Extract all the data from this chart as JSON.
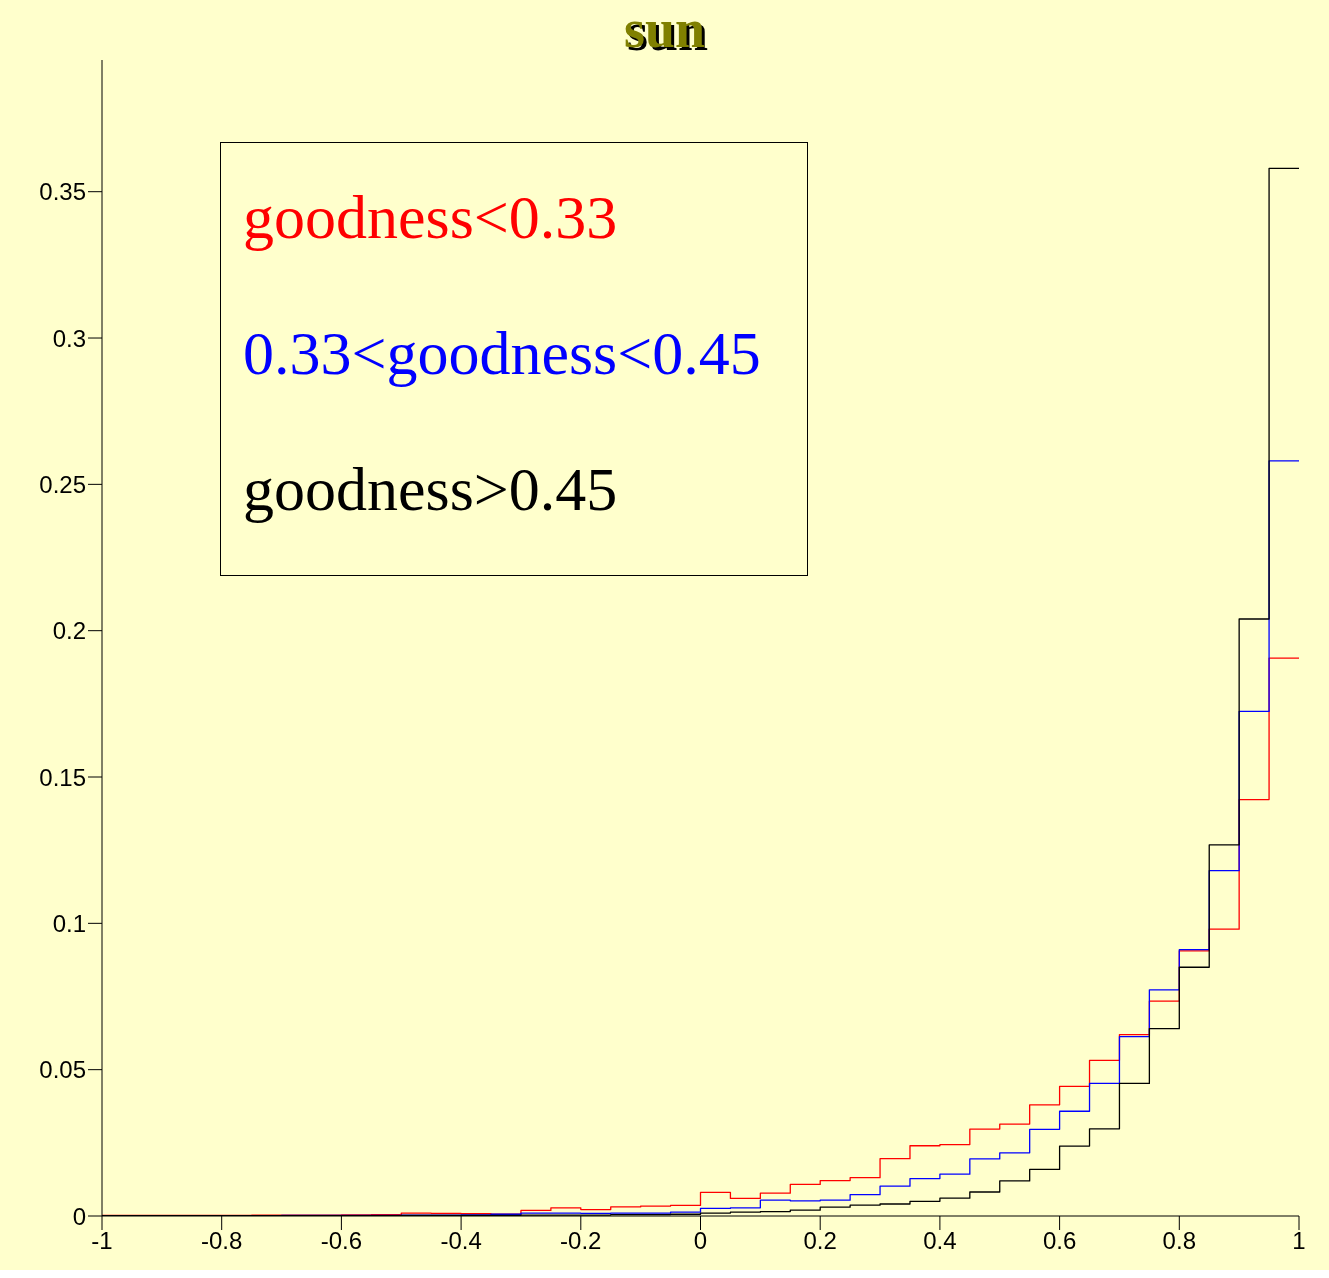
{
  "chart_data": {
    "type": "histogram",
    "title": "sun",
    "bins": [
      -1,
      -0.95,
      -0.9,
      -0.85,
      -0.8,
      -0.75,
      -0.7,
      -0.65,
      -0.6,
      -0.55,
      -0.5,
      -0.45,
      -0.4,
      -0.35,
      -0.3,
      -0.25,
      -0.2,
      -0.15,
      -0.1,
      -0.05,
      0,
      0.05,
      0.1,
      0.15,
      0.2,
      0.25,
      0.3,
      0.35,
      0.4,
      0.45,
      0.5,
      0.55,
      0.6,
      0.65,
      0.7,
      0.75,
      0.8,
      0.85,
      0.9,
      0.95,
      1
    ],
    "series": [
      {
        "name": "goodness<0.33",
        "color": "#ff0000",
        "values": [
          0.0002,
          0.0002,
          0.0002,
          0.0002,
          0.0002,
          0.0003,
          0.0003,
          0.0003,
          0.0004,
          0.0005,
          0.001,
          0.0009,
          0.0008,
          0.0006,
          0.0019,
          0.0028,
          0.0022,
          0.0031,
          0.0034,
          0.0036,
          0.0081,
          0.006,
          0.0078,
          0.0108,
          0.0121,
          0.0131,
          0.0196,
          0.024,
          0.0244,
          0.0297,
          0.0314,
          0.038,
          0.0443,
          0.0532,
          0.062,
          0.0734,
          0.0906,
          0.098,
          0.1423,
          0.1906
        ]
      },
      {
        "name": "0.33<goodness<0.45",
        "color": "#0000ff",
        "values": [
          0.0001,
          0.0001,
          0.0001,
          0.0001,
          0.0001,
          0.0001,
          0.0002,
          0.0002,
          0.0002,
          0.0002,
          0.0003,
          0.0003,
          0.0004,
          0.0006,
          0.001,
          0.001,
          0.0009,
          0.001,
          0.001,
          0.0013,
          0.0026,
          0.0028,
          0.0054,
          0.0052,
          0.0054,
          0.0073,
          0.0102,
          0.0128,
          0.0143,
          0.0195,
          0.0216,
          0.0296,
          0.0358,
          0.0453,
          0.0613,
          0.0773,
          0.091,
          0.118,
          0.1724,
          0.258
        ]
      },
      {
        "name": "goodness>0.45",
        "color": "#000000",
        "values": [
          0.0001,
          0.0001,
          0.0001,
          0.0001,
          0.0001,
          0.0001,
          0.0001,
          0.0001,
          0.0001,
          0.0001,
          0.0002,
          0.0002,
          0.0002,
          0.0002,
          0.0003,
          0.0003,
          0.0003,
          0.0005,
          0.0005,
          0.0006,
          0.001,
          0.0013,
          0.0015,
          0.002,
          0.003,
          0.0037,
          0.0041,
          0.005,
          0.0061,
          0.0082,
          0.012,
          0.0159,
          0.0239,
          0.0298,
          0.0453,
          0.064,
          0.085,
          0.1268,
          0.204,
          0.358
        ]
      }
    ],
    "xlim": [
      -1,
      1
    ],
    "xticks": [
      -1,
      -0.8,
      -0.6,
      -0.4,
      -0.2,
      0,
      0.2,
      0.4,
      0.6,
      0.8,
      1
    ],
    "ylim": [
      0,
      0.395
    ],
    "yticks": [
      0,
      0.05,
      0.1,
      0.15,
      0.2,
      0.25,
      0.3,
      0.35
    ],
    "legend": "top left",
    "grid": false
  }
}
